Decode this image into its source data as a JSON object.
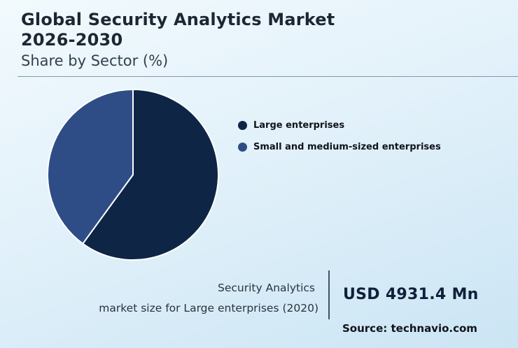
{
  "header": {
    "title": "Global Security Analytics Market 2026-2030",
    "subtitle": "Share by Sector (%)"
  },
  "legend": [
    {
      "label": "Large enterprises",
      "color": "#0e2546"
    },
    {
      "label": "Small and medium-sized enterprises",
      "color": "#2e4d87"
    }
  ],
  "footer": {
    "caption_line1": "Security Analytics",
    "caption_line2": "market size for Large enterprises (2020)",
    "value": "USD 4931.4 Mn"
  },
  "source": "Source: technavio.com",
  "chart_data": {
    "type": "pie",
    "title": "Global Security Analytics Market 2026-2030 — Share by Sector (%)",
    "labels": [
      "Large enterprises",
      "Small and medium-sized enterprises"
    ],
    "values": [
      60,
      40
    ],
    "colors": [
      "#0e2546",
      "#2e4d87"
    ],
    "start_angle_deg": 0,
    "direction": "clockwise",
    "legend_position": "right",
    "slice_border_color": "#ffffff"
  }
}
